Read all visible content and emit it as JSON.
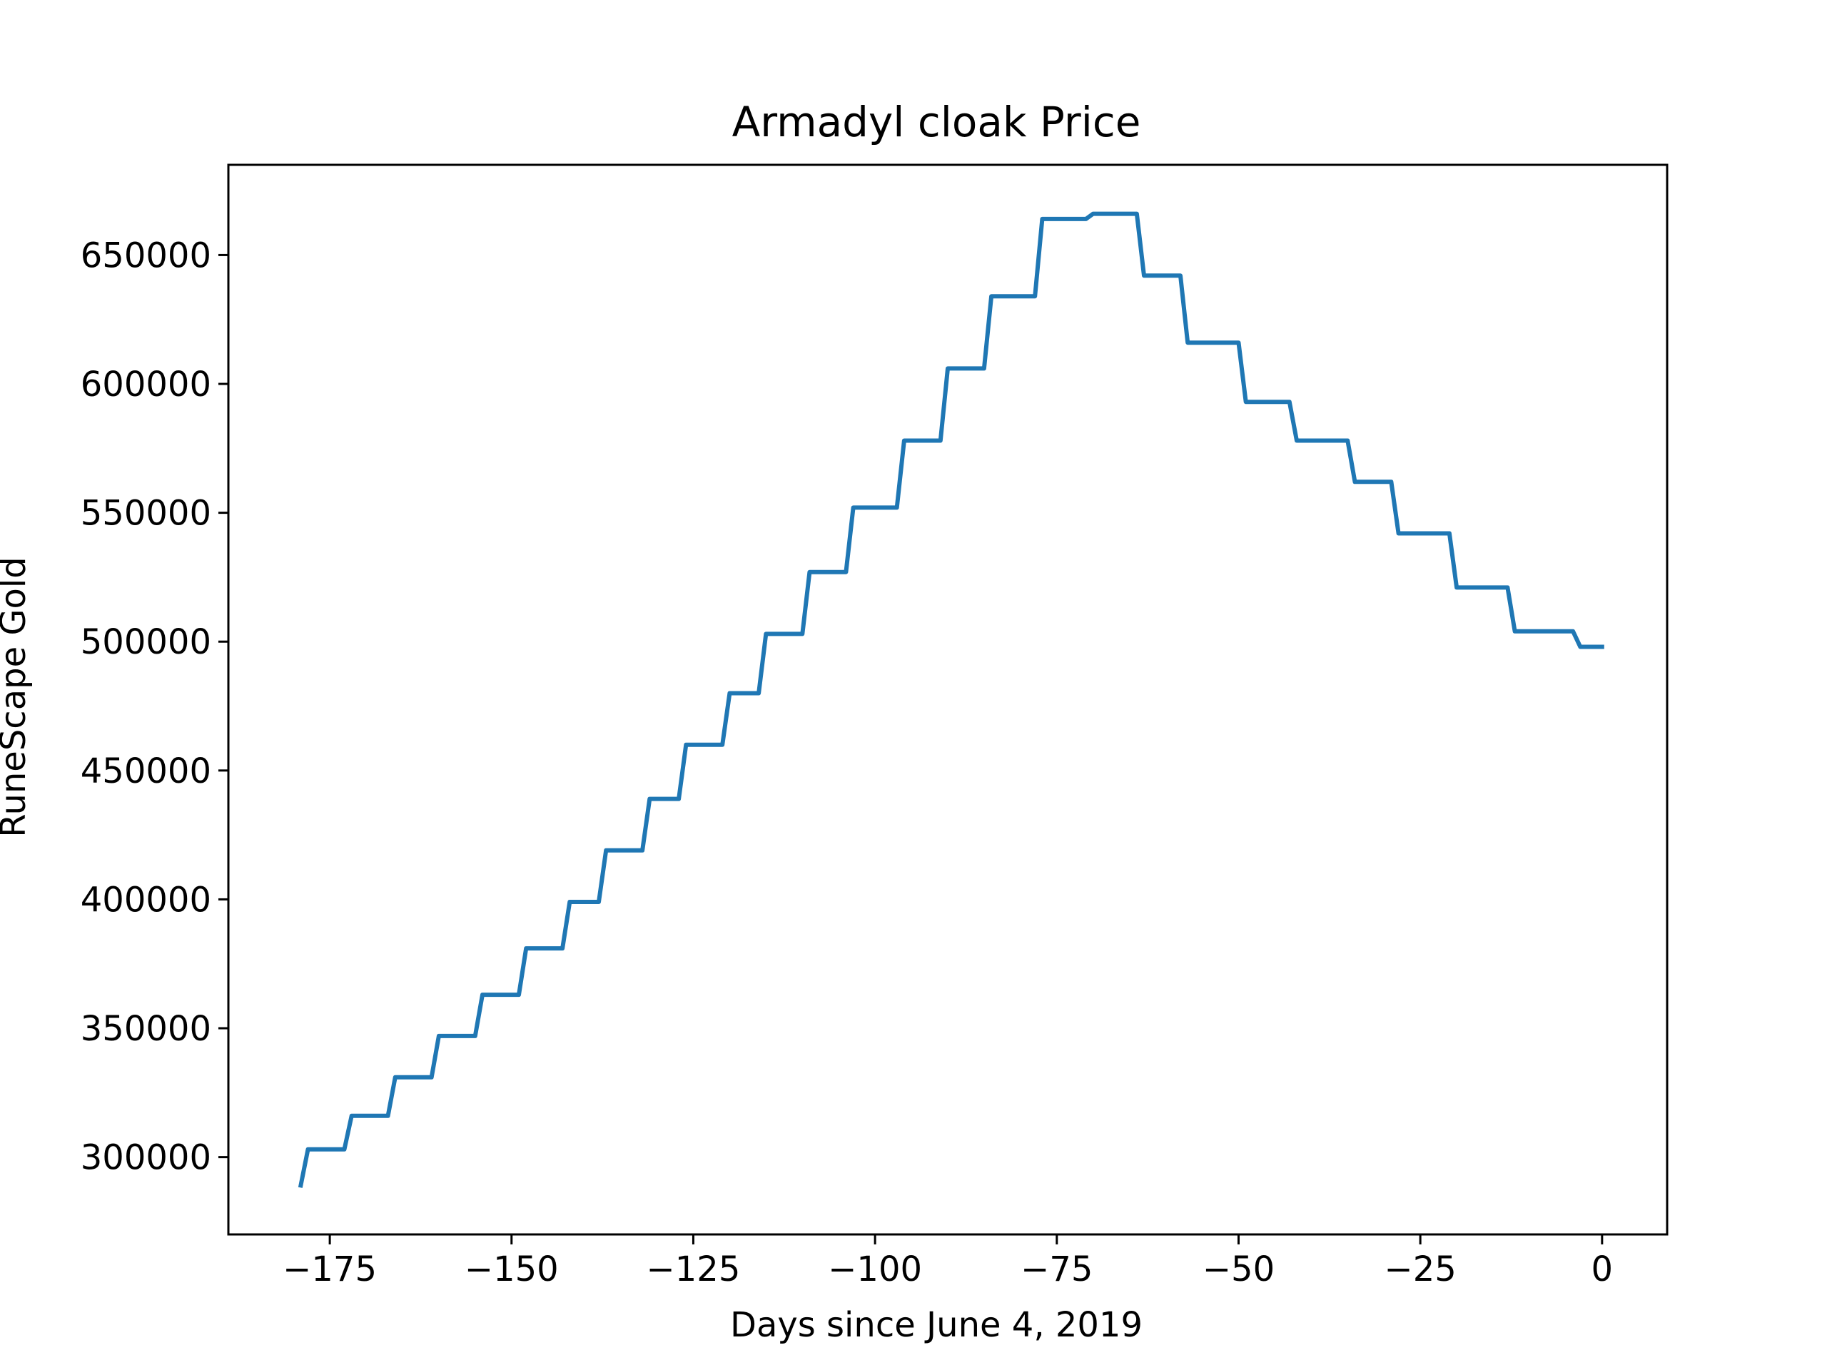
{
  "chart_data": {
    "type": "line",
    "title": "Armadyl cloak Price",
    "xlabel": "Days since June 4, 2019",
    "ylabel": "RuneScape Gold",
    "xlim": [
      -188.95,
      8.95
    ],
    "ylim": [
      270000,
      685000
    ],
    "grid": false,
    "legend": "none",
    "x_ticks": [
      -175,
      -150,
      -125,
      -100,
      -75,
      -50,
      -25,
      0
    ],
    "x_tick_labels": [
      "−175",
      "−150",
      "−125",
      "−100",
      "−75",
      "−50",
      "−25",
      "0"
    ],
    "y_ticks": [
      300000,
      350000,
      400000,
      450000,
      500000,
      550000,
      600000,
      650000
    ],
    "y_tick_labels": [
      "300000",
      "350000",
      "400000",
      "450000",
      "500000",
      "550000",
      "600000",
      "650000"
    ],
    "series": [
      {
        "color": "#1f77b4",
        "x": [
          -179,
          -178,
          -173,
          -172,
          -167,
          -166,
          -161,
          -160,
          -155,
          -154,
          -149,
          -148,
          -143,
          -142,
          -138,
          -137,
          -132,
          -131,
          -127,
          -126,
          -121,
          -120,
          -116,
          -115,
          -110,
          -109,
          -104,
          -103,
          -97,
          -96,
          -91,
          -90,
          -85,
          -84,
          -78,
          -77,
          -71,
          -70,
          -64,
          -63,
          -58,
          -57,
          -50,
          -49,
          -43,
          -42,
          -35,
          -34,
          -29,
          -28,
          -21,
          -20,
          -13,
          -12,
          -4,
          -3,
          0
        ],
        "y": [
          289000,
          303000,
          303000,
          316000,
          316000,
          331000,
          331000,
          347000,
          347000,
          363000,
          363000,
          381000,
          381000,
          399000,
          399000,
          419000,
          419000,
          439000,
          439000,
          460000,
          460000,
          480000,
          480000,
          503000,
          503000,
          527000,
          527000,
          552000,
          552000,
          578000,
          578000,
          606000,
          606000,
          634000,
          634000,
          664000,
          664000,
          666000,
          666000,
          642000,
          642000,
          616000,
          616000,
          593000,
          593000,
          578000,
          578000,
          562000,
          562000,
          542000,
          542000,
          521000,
          521000,
          504000,
          504000,
          498000,
          498000
        ]
      }
    ]
  }
}
